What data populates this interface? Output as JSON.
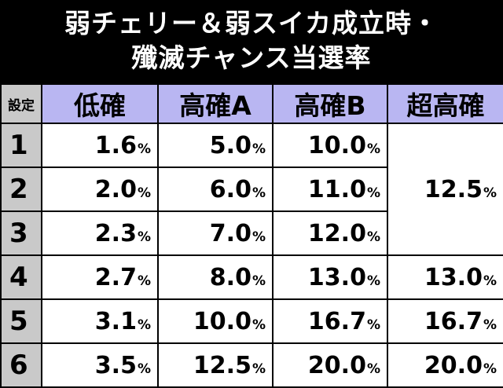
{
  "title": {
    "line1": "弱チェリー＆弱スイカ成立時・",
    "line2": "殲滅チャンス当選率"
  },
  "table": {
    "corner": "設定",
    "headers": [
      "低確",
      "高確A",
      "高確B",
      "超高確"
    ],
    "percent_sign": "%",
    "rows": [
      {
        "setting": "1",
        "low": "1.6",
        "highA": "5.0",
        "highB": "10.0"
      },
      {
        "setting": "2",
        "low": "2.0",
        "highA": "6.0",
        "highB": "11.0"
      },
      {
        "setting": "3",
        "low": "2.3",
        "highA": "7.0",
        "highB": "12.0"
      },
      {
        "setting": "4",
        "low": "2.7",
        "highA": "8.0",
        "highB": "13.0",
        "super": "13.0"
      },
      {
        "setting": "5",
        "low": "3.1",
        "highA": "10.0",
        "highB": "16.7",
        "super": "16.7"
      },
      {
        "setting": "6",
        "low": "3.5",
        "highA": "12.5",
        "highB": "20.0",
        "super": "20.0"
      }
    ],
    "super_merged_1_3": "12.5"
  },
  "colors": {
    "title_background": "#000000",
    "title_text": "#ffffff",
    "header_background": "#b9b6f2",
    "setting_background": "#c9c9c9",
    "cell_background": "#ffffff"
  }
}
